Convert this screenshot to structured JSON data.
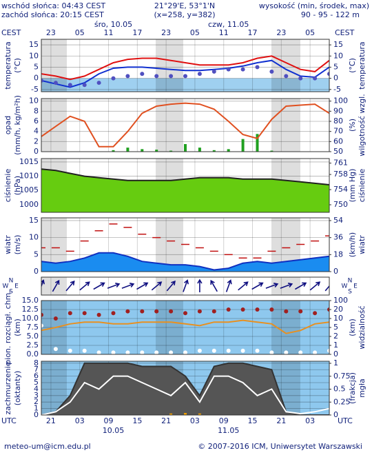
{
  "header": {
    "sunrise": "wschód słońca: 04:43 CEST",
    "sunset": "zachód słońca: 20:15 CEST",
    "coords": "21°29'E, 53°1'N",
    "grid_point": "(x=258, y=382)",
    "height_title": "wysokość (min, środek, max)",
    "height_values": "90 - 95 - 122 m"
  },
  "time": {
    "x": [
      0,
      3,
      6,
      9,
      12,
      15,
      18,
      21,
      24,
      27,
      30,
      33,
      36,
      39,
      42,
      45,
      48,
      51,
      54,
      57,
      60
    ],
    "xlim": [
      0,
      60
    ],
    "top_zone": "CEST",
    "bottom_zone": "UTC",
    "top_ticks": [
      {
        "value": 2,
        "label": "23"
      },
      {
        "value": 8,
        "label": "05"
      },
      {
        "value": 14,
        "label": "11"
      },
      {
        "value": 20,
        "label": "17"
      },
      {
        "value": 26,
        "label": "23"
      },
      {
        "value": 32,
        "label": "05"
      },
      {
        "value": 38,
        "label": "11"
      },
      {
        "value": 44,
        "label": "17"
      },
      {
        "value": 50,
        "label": "23"
      },
      {
        "value": 56,
        "label": "05"
      }
    ],
    "bottom_ticks": [
      {
        "value": 2,
        "label": "21"
      },
      {
        "value": 8,
        "label": "03"
      },
      {
        "value": 14,
        "label": "09"
      },
      {
        "value": 20,
        "label": "15"
      },
      {
        "value": 26,
        "label": "21"
      },
      {
        "value": 32,
        "label": "03"
      },
      {
        "value": 38,
        "label": "09"
      },
      {
        "value": 44,
        "label": "15"
      },
      {
        "value": 50,
        "label": "21"
      },
      {
        "value": 56,
        "label": "03"
      }
    ],
    "top_dates": [
      "śro, 10.05",
      "czw, 11.05"
    ],
    "bottom_dates": [
      "10.05",
      "11.05"
    ]
  },
  "chart_data": [
    {
      "type": "line",
      "ylabel": [
        "temperatura",
        "(°C)"
      ],
      "y2label": [
        "(°C)",
        "temperatura"
      ],
      "ylim": [
        -6,
        17.5
      ],
      "yticks": [
        -5,
        0,
        5,
        10,
        15
      ],
      "y2lim": [
        -6,
        17.5
      ],
      "y2ticks": [
        -5,
        0,
        5,
        10,
        15
      ],
      "background": "#ffffff",
      "below_zero_color": "#9fd0f0",
      "series": [
        {
          "style": "line",
          "color": "#e01010",
          "values": [
            2,
            1,
            -0.5,
            1,
            4,
            7,
            8.5,
            9,
            9,
            8,
            7,
            6,
            6,
            6,
            7,
            9,
            10,
            7,
            4,
            3,
            8
          ]
        },
        {
          "style": "line",
          "color": "#1030d0",
          "values": [
            -1,
            -2.5,
            -4,
            -2,
            2,
            4.5,
            5,
            5,
            4.5,
            4,
            3.5,
            3.5,
            4,
            4.5,
            5.5,
            7,
            8,
            4,
            1,
            0.5,
            5
          ]
        },
        {
          "style": "dots",
          "color": "#5050c0",
          "values": [
            -1,
            -2,
            -3,
            -3,
            -2,
            0,
            1,
            2,
            1,
            1,
            1,
            2,
            3,
            4,
            4,
            5,
            3,
            1,
            0,
            0,
            2
          ]
        }
      ]
    },
    {
      "type": "line",
      "ylabel": [
        "opad",
        "(mm/h, kg/m²h)"
      ],
      "y2label": [
        "(%)",
        "wilgotność wzgl."
      ],
      "ylim": [
        0,
        10.5
      ],
      "yticks": [
        0,
        2,
        4,
        6,
        8,
        10
      ],
      "y2lim": [
        50,
        102.5
      ],
      "y2ticks": [
        50,
        60,
        70,
        80,
        90,
        100
      ],
      "background": "#ffffff",
      "series": [
        {
          "style": "bars",
          "color": "#20a020",
          "values": [
            0,
            0,
            0,
            0,
            0,
            0.3,
            0.8,
            0.5,
            0.4,
            0.2,
            1.5,
            0.8,
            0.3,
            0.5,
            2.5,
            3.5,
            0.2,
            0,
            0,
            0,
            0
          ]
        },
        {
          "style": "line",
          "color": "#e05020",
          "axis": "y2",
          "values": [
            65,
            75,
            85,
            80,
            55,
            55,
            70,
            88,
            95,
            97,
            98,
            97,
            92,
            80,
            67,
            63,
            82,
            95,
            96,
            97,
            88
          ]
        }
      ]
    },
    {
      "type": "line",
      "ylabel": [
        "ciśnienie",
        "(hPa)"
      ],
      "y2label": [
        "(mm Hg)",
        "ciśnienie"
      ],
      "ylim": [
        997.3,
        1016.2
      ],
      "yticks": [
        1000,
        1005,
        1010,
        1015
      ],
      "y2lim": [
        748.0,
        762.2
      ],
      "y2ticks": [
        750,
        754,
        758,
        761
      ],
      "background": "#ffffff",
      "series": [
        {
          "style": "area",
          "color": "#202020",
          "fill": "#66cc10",
          "values": [
            1012.5,
            1012,
            1011,
            1010,
            1009.5,
            1009,
            1008.5,
            1008.5,
            1008.5,
            1008.5,
            1009,
            1009.5,
            1009.5,
            1009.5,
            1009,
            1009,
            1009,
            1008.5,
            1008,
            1007.5,
            1007
          ]
        }
      ]
    },
    {
      "type": "line",
      "ylabel": [
        "wiatr",
        "(m/s)"
      ],
      "y2label": [
        "(km/h)",
        "wiatr"
      ],
      "ylim": [
        0,
        15.8
      ],
      "yticks": [
        0,
        5,
        10,
        15
      ],
      "y2lim": [
        0,
        56.9
      ],
      "y2ticks": [
        0,
        18,
        36,
        54
      ],
      "background": "#ffffff",
      "series": [
        {
          "style": "area",
          "color": "#1030c0",
          "fill": "#1a8cf0",
          "values": [
            3,
            2.5,
            3,
            4,
            5.5,
            5.5,
            4.5,
            3,
            2.5,
            2,
            2,
            1.5,
            0.5,
            1,
            2.5,
            3,
            2.5,
            3,
            3.5,
            4,
            4.5
          ]
        },
        {
          "style": "dashes",
          "color": "#c01010",
          "values": [
            7,
            7,
            6,
            9,
            12,
            14,
            13,
            11,
            10,
            9,
            8,
            7,
            6,
            5,
            4,
            4,
            6,
            7,
            8,
            9,
            10.5
          ]
        }
      ]
    },
    {
      "type": "arrows",
      "compass": {
        "n": "N",
        "w": "W",
        "e": "E",
        "s": "S"
      },
      "background": "#ffffff",
      "series": [
        {
          "style": "arrows",
          "color": "#101080",
          "values": [
            200,
            210,
            220,
            230,
            240,
            250,
            250,
            240,
            230,
            220,
            200,
            180,
            150,
            200,
            230,
            240,
            250,
            250,
            240,
            230,
            220
          ]
        }
      ]
    },
    {
      "type": "line",
      "ylabel": [
        "pion. rozciągł. chm.",
        "(km)"
      ],
      "y2label": [
        "(km)",
        "widzialność"
      ],
      "ylim": [
        0,
        15
      ],
      "yticks": [
        {
          "value": 0,
          "label": "0.0"
        },
        2.5,
        {
          "value": 5,
          "label": "5.0"
        },
        7.5,
        {
          "value": 10,
          "label": "10.0"
        },
        12.5,
        {
          "value": 15,
          "label": "15.0"
        }
      ],
      "y2scale": "tick-spaced",
      "y2lim": [
        0,
        100
      ],
      "y2ticks": [
        0,
        1,
        2,
        5,
        10,
        20,
        100
      ],
      "background": "#8ec8ee",
      "series": [
        {
          "style": "line",
          "color": "#e89020",
          "axis": "y2",
          "values": [
            4,
            5,
            7,
            8,
            8,
            7,
            7,
            8,
            8,
            8,
            7,
            6,
            8,
            8,
            9,
            8,
            7,
            3,
            4,
            7,
            8
          ]
        },
        {
          "style": "dots",
          "color": "#a02020",
          "values": [
            11,
            10,
            11.5,
            11.5,
            11,
            11.5,
            12,
            12,
            12,
            12,
            11.5,
            12,
            12,
            12.5,
            12.5,
            12.5,
            12.5,
            12,
            12,
            11.5,
            12.5
          ]
        },
        {
          "style": "dots",
          "color": "#ffffff",
          "values": [
            8,
            1.5,
            1,
            1,
            0.5,
            0.5,
            0.5,
            0.5,
            0.5,
            0.5,
            0.5,
            1,
            1,
            1,
            1,
            1,
            0.5,
            0.5,
            0.5,
            0.5,
            1
          ]
        }
      ]
    },
    {
      "type": "line",
      "ylabel": [
        "zachmurzenie",
        "(oktanty)"
      ],
      "y2label": [
        "(frakcja)",
        "mgła"
      ],
      "ylim": [
        0,
        8.3
      ],
      "yticks": [
        0,
        1,
        2,
        3,
        4,
        5,
        6,
        7,
        8
      ],
      "y2lim": [
        0,
        1.04
      ],
      "y2ticks": [
        0,
        0.25,
        0.5,
        0.75,
        1
      ],
      "background": "#8ec8ee",
      "series": [
        {
          "style": "area",
          "color": "#333333",
          "fill": "#555555",
          "values": [
            0,
            0.5,
            3,
            8,
            8,
            8,
            8,
            7.5,
            7.5,
            7.5,
            6,
            3,
            7.5,
            8,
            8,
            7.5,
            7,
            0.5,
            0,
            0,
            0
          ]
        },
        {
          "style": "line",
          "color": "#ffffff",
          "values": [
            0,
            0.5,
            2,
            5,
            4,
            6,
            6,
            5,
            4,
            3,
            5,
            2,
            6,
            6,
            5,
            3,
            4,
            0.5,
            0.2,
            0.5,
            1
          ]
        },
        {
          "style": "bars",
          "color": "#f0a000",
          "axis": "y2",
          "values": [
            0,
            0,
            0,
            0,
            0,
            0,
            0,
            0,
            0,
            0.03,
            0.04,
            0.03,
            0,
            0,
            0,
            0,
            0,
            0,
            0,
            0,
            0
          ]
        }
      ]
    }
  ],
  "footer": {
    "email": "meteo-um@icm.edu.pl",
    "copyright": "© 2007-2016 ICM, Uniwersytet Warszawski"
  }
}
